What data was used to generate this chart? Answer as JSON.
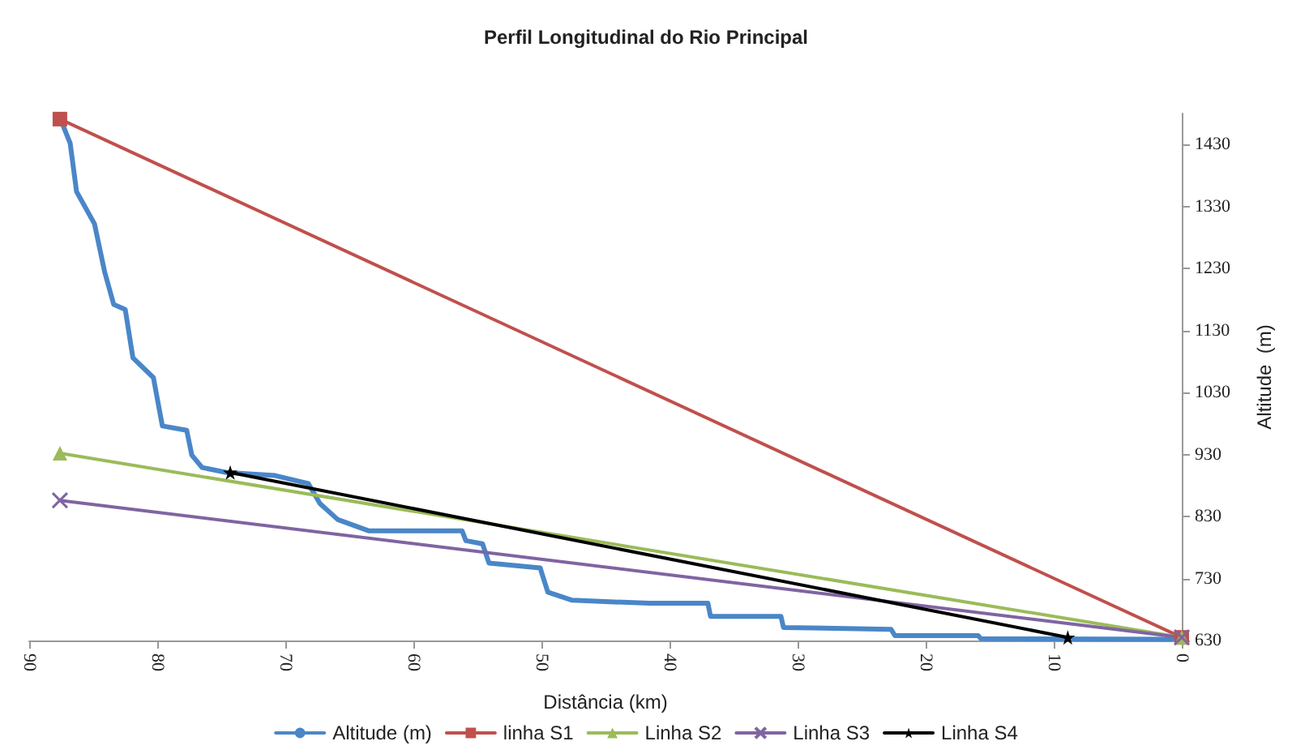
{
  "chart_data": {
    "type": "line",
    "title": "Perfil Longitudinal do Rio Principal",
    "xlabel": "Distância (km)",
    "ylabel": "Altitude  (m)",
    "xlim": [
      90,
      0
    ],
    "xticks": [
      90,
      80,
      70,
      60,
      50,
      40,
      30,
      20,
      10,
      0
    ],
    "ylim": [
      630,
      1480
    ],
    "yticks": [
      630,
      730,
      830,
      930,
      1030,
      1130,
      1230,
      1330,
      1430
    ],
    "grid": false,
    "legend": "bottom",
    "line_style": "solid",
    "series": [
      {
        "name": "Altitude (m)",
        "color": "#4a86c8",
        "marker": "none",
        "x": [
          87.5,
          86.8,
          86.3,
          84.9,
          84.1,
          83.4,
          82.5,
          81.9,
          80.3,
          79.6,
          77.7,
          77.3,
          76.5,
          74.6,
          70.8,
          68.2,
          67.3,
          65.9,
          63.5,
          56.2,
          55.9,
          54.6,
          54.1,
          50.1,
          49.5,
          47.6,
          41.6,
          37.0,
          36.8,
          31.3,
          31.1,
          22.7,
          22.4,
          15.9,
          15.7,
          0
        ],
        "values": [
          1468,
          1432,
          1354,
          1302,
          1224,
          1172,
          1164,
          1086,
          1054,
          976,
          969,
          929,
          909,
          901,
          896,
          883,
          851,
          825,
          807,
          807,
          791,
          786,
          755,
          747,
          708,
          695,
          690,
          690,
          669,
          669,
          651,
          648,
          638,
          638,
          633,
          632
        ]
      },
      {
        "name": "linha S1",
        "color": "#c0504d",
        "marker": "square",
        "x": [
          87.6,
          0
        ],
        "values": [
          1471,
          635
        ]
      },
      {
        "name": "Linha S2",
        "color": "#9bbb59",
        "marker": "triangle",
        "x": [
          87.6,
          0
        ],
        "values": [
          932,
          635
        ]
      },
      {
        "name": "Linha S3",
        "color": "#8064a2",
        "marker": "cross",
        "x": [
          87.6,
          0
        ],
        "values": [
          856,
          635
        ]
      },
      {
        "name": "Linha S4",
        "color": "#000000",
        "marker": "star",
        "x": [
          74.3,
          8.9
        ],
        "values": [
          901,
          635
        ]
      }
    ]
  }
}
